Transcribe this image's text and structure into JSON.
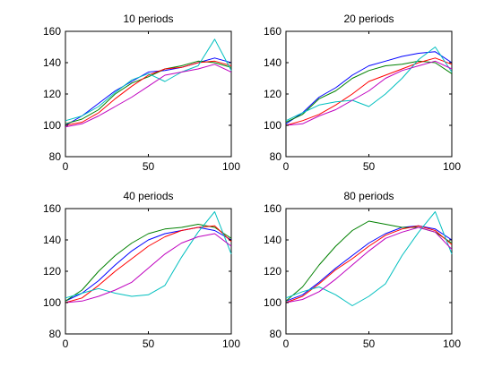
{
  "chart_data": [
    {
      "type": "line",
      "title": "10 periods",
      "xlabel": "",
      "ylabel": "",
      "xlim": [
        0,
        100
      ],
      "ylim": [
        80,
        160
      ],
      "xticks": [
        0,
        50,
        100
      ],
      "yticks": [
        80,
        100,
        120,
        140,
        160
      ],
      "grid": false,
      "series": [
        {
          "color": "#0000ff",
          "x": [
            0,
            10,
            20,
            30,
            40,
            50,
            60,
            70,
            80,
            90,
            100
          ],
          "y": [
            100,
            106,
            114,
            122,
            128,
            134,
            135,
            137,
            140,
            143,
            140
          ]
        },
        {
          "color": "#008000",
          "x": [
            0,
            10,
            20,
            30,
            40,
            50,
            60,
            70,
            80,
            90,
            100
          ],
          "y": [
            101,
            104,
            110,
            120,
            127,
            131,
            136,
            138,
            141,
            140,
            137
          ]
        },
        {
          "color": "#ff0000",
          "x": [
            0,
            10,
            20,
            30,
            40,
            50,
            60,
            70,
            80,
            90,
            100
          ],
          "y": [
            100,
            102,
            108,
            117,
            125,
            132,
            136,
            137,
            140,
            141,
            138
          ]
        },
        {
          "color": "#00bfbf",
          "x": [
            0,
            10,
            20,
            30,
            40,
            50,
            60,
            70,
            80,
            90,
            100
          ],
          "y": [
            103,
            106,
            112,
            121,
            129,
            133,
            128,
            134,
            138,
            155,
            135
          ]
        },
        {
          "color": "#bf00bf",
          "x": [
            0,
            10,
            20,
            30,
            40,
            50,
            60,
            70,
            80,
            90,
            100
          ],
          "y": [
            99,
            101,
            106,
            112,
            118,
            125,
            132,
            134,
            136,
            139,
            134
          ]
        }
      ]
    },
    {
      "type": "line",
      "title": "20 periods",
      "xlabel": "",
      "ylabel": "",
      "xlim": [
        0,
        100
      ],
      "ylim": [
        80,
        160
      ],
      "xticks": [
        0,
        50,
        100
      ],
      "yticks": [
        80,
        100,
        120,
        140,
        160
      ],
      "grid": false,
      "series": [
        {
          "color": "#0000ff",
          "x": [
            0,
            10,
            20,
            30,
            40,
            50,
            60,
            70,
            80,
            90,
            100
          ],
          "y": [
            101,
            108,
            118,
            124,
            132,
            138,
            141,
            144,
            146,
            147,
            140
          ]
        },
        {
          "color": "#008000",
          "x": [
            0,
            10,
            20,
            30,
            40,
            50,
            60,
            70,
            80,
            90,
            100
          ],
          "y": [
            102,
            107,
            117,
            122,
            130,
            135,
            138,
            139,
            141,
            140,
            133
          ]
        },
        {
          "color": "#ff0000",
          "x": [
            0,
            10,
            20,
            30,
            40,
            50,
            60,
            70,
            80,
            90,
            100
          ],
          "y": [
            100,
            103,
            107,
            113,
            120,
            128,
            132,
            136,
            140,
            143,
            139
          ]
        },
        {
          "color": "#00bfbf",
          "x": [
            0,
            10,
            20,
            30,
            40,
            50,
            60,
            70,
            80,
            90,
            100
          ],
          "y": [
            103,
            108,
            113,
            115,
            116,
            112,
            120,
            130,
            142,
            150,
            134
          ]
        },
        {
          "color": "#bf00bf",
          "x": [
            0,
            10,
            20,
            30,
            40,
            50,
            60,
            70,
            80,
            90,
            100
          ],
          "y": [
            100,
            101,
            106,
            110,
            116,
            122,
            130,
            135,
            138,
            141,
            136
          ]
        }
      ]
    },
    {
      "type": "line",
      "title": "40 periods",
      "xlabel": "",
      "ylabel": "",
      "xlim": [
        0,
        100
      ],
      "ylim": [
        80,
        160
      ],
      "xticks": [
        0,
        50,
        100
      ],
      "yticks": [
        80,
        100,
        120,
        140,
        160
      ],
      "grid": false,
      "series": [
        {
          "color": "#0000ff",
          "x": [
            0,
            10,
            20,
            30,
            40,
            50,
            60,
            70,
            80,
            90,
            100
          ],
          "y": [
            101,
            106,
            114,
            124,
            133,
            140,
            144,
            146,
            148,
            146,
            140
          ]
        },
        {
          "color": "#008000",
          "x": [
            0,
            10,
            20,
            30,
            40,
            50,
            60,
            70,
            80,
            90,
            100
          ],
          "y": [
            101,
            108,
            120,
            130,
            138,
            144,
            147,
            148,
            150,
            148,
            141
          ]
        },
        {
          "color": "#ff0000",
          "x": [
            0,
            10,
            20,
            30,
            40,
            50,
            60,
            70,
            80,
            90,
            100
          ],
          "y": [
            100,
            103,
            111,
            120,
            128,
            136,
            142,
            146,
            148,
            149,
            139
          ]
        },
        {
          "color": "#00bfbf",
          "x": [
            0,
            10,
            20,
            30,
            40,
            50,
            60,
            70,
            80,
            90,
            100
          ],
          "y": [
            103,
            106,
            109,
            106,
            104,
            105,
            111,
            129,
            145,
            158,
            131
          ]
        },
        {
          "color": "#bf00bf",
          "x": [
            0,
            10,
            20,
            30,
            40,
            50,
            60,
            70,
            80,
            90,
            100
          ],
          "y": [
            100,
            101,
            104,
            108,
            113,
            122,
            131,
            138,
            142,
            144,
            136
          ]
        }
      ]
    },
    {
      "type": "line",
      "title": "80 periods",
      "xlabel": "",
      "ylabel": "",
      "xlim": [
        0,
        100
      ],
      "ylim": [
        80,
        160
      ],
      "xticks": [
        0,
        50,
        100
      ],
      "yticks": [
        80,
        100,
        120,
        140,
        160
      ],
      "grid": false,
      "series": [
        {
          "color": "#0000ff",
          "x": [
            0,
            10,
            20,
            30,
            40,
            50,
            60,
            70,
            80,
            90,
            100
          ],
          "y": [
            101,
            105,
            113,
            122,
            130,
            138,
            144,
            148,
            149,
            147,
            140
          ]
        },
        {
          "color": "#008000",
          "x": [
            0,
            10,
            20,
            30,
            40,
            50,
            60,
            70,
            80,
            90,
            100
          ],
          "y": [
            101,
            110,
            124,
            136,
            146,
            152,
            150,
            148,
            148,
            145,
            138
          ]
        },
        {
          "color": "#ff0000",
          "x": [
            0,
            10,
            20,
            30,
            40,
            50,
            60,
            70,
            80,
            90,
            100
          ],
          "y": [
            100,
            104,
            112,
            121,
            128,
            136,
            143,
            147,
            149,
            146,
            137
          ]
        },
        {
          "color": "#00bfbf",
          "x": [
            0,
            10,
            20,
            30,
            40,
            50,
            60,
            70,
            80,
            90,
            100
          ],
          "y": [
            103,
            107,
            110,
            105,
            98,
            104,
            112,
            130,
            145,
            158,
            131
          ]
        },
        {
          "color": "#bf00bf",
          "x": [
            0,
            10,
            20,
            30,
            40,
            50,
            60,
            70,
            80,
            90,
            100
          ],
          "y": [
            100,
            102,
            107,
            115,
            124,
            133,
            141,
            145,
            148,
            145,
            134
          ]
        }
      ]
    }
  ]
}
